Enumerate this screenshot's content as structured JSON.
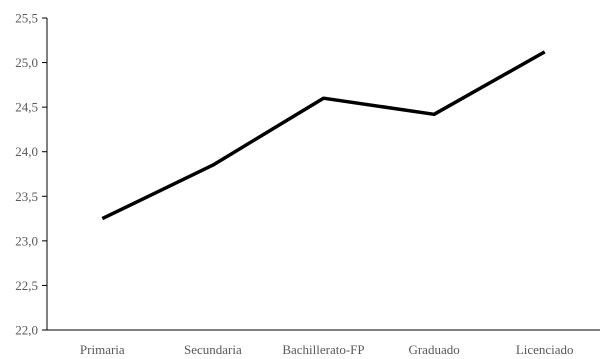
{
  "chart_data": {
    "type": "line",
    "categories": [
      "Primaria",
      "Secundaria",
      "Bachillerato-FP",
      "Graduado",
      "Licenciado"
    ],
    "series": [
      {
        "values": [
          23.25,
          23.85,
          24.6,
          24.42,
          25.12
        ]
      }
    ],
    "ylim": [
      22.0,
      25.5
    ],
    "yticks": [
      "22,0",
      "22,5",
      "23,0",
      "23,5",
      "24,0",
      "24,5",
      "25,0",
      "25,5"
    ],
    "ytick_values": [
      22.0,
      22.5,
      23.0,
      23.5,
      24.0,
      24.5,
      25.0,
      25.5
    ],
    "grid": false,
    "legend": "none",
    "line_color": "#000000",
    "axis_color": "#000000",
    "tick_label_color": "#595959"
  }
}
